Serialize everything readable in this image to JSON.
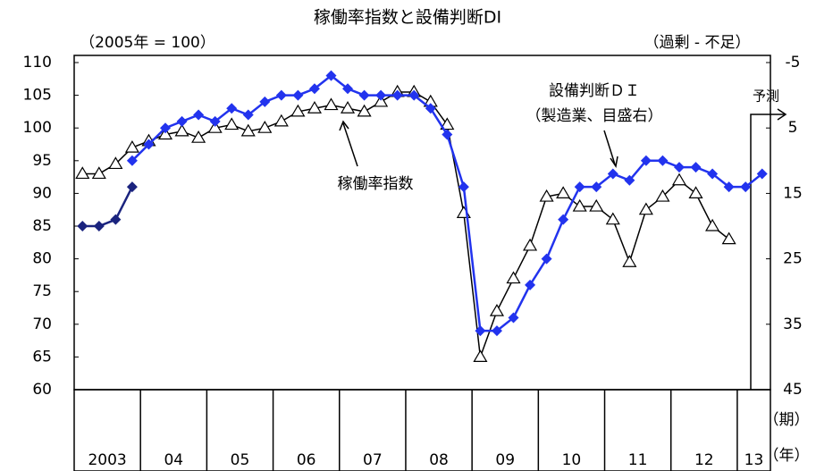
{
  "chart_data": {
    "type": "line",
    "title": "稼働率指数と設備判断DI",
    "y_label": "（2005年 = 100）",
    "y2_label": "（過剰 - 不足）",
    "period_label": "（期）",
    "year_label": "（年）",
    "annotations": [
      "稼働率指数",
      "設備判断ＤＩ",
      "（製造業、目盛右）",
      "予測"
    ],
    "categories": [
      "2003",
      null,
      null,
      null,
      "04",
      null,
      null,
      null,
      "05",
      null,
      null,
      null,
      "06",
      null,
      null,
      null,
      "07",
      null,
      null,
      null,
      "08",
      null,
      null,
      null,
      "09",
      null,
      null,
      null,
      "10",
      null,
      null,
      null,
      "11",
      null,
      null,
      null,
      "12",
      null,
      null,
      null,
      "13",
      null
    ],
    "ylim": [
      60,
      110
    ],
    "yticks": [
      60,
      65,
      70,
      75,
      80,
      85,
      90,
      95,
      100,
      105,
      110
    ],
    "y2lim": [
      -5,
      45
    ],
    "y2_inverted": true,
    "y2ticks": [
      -5,
      5,
      15,
      25,
      35,
      45
    ],
    "series": [
      {
        "name": "稼働率指数",
        "color": "#000000",
        "marker": "triangle",
        "values": [
          93,
          93,
          94.5,
          97,
          98,
          99,
          99.5,
          98.5,
          100,
          100.5,
          99.5,
          100,
          101,
          102.5,
          103,
          103.5,
          103,
          102.5,
          104,
          105.5,
          105.5,
          104,
          100.5,
          87,
          65,
          72,
          77,
          82,
          89.5,
          90,
          88,
          88,
          86,
          79.5,
          87.5,
          89.5,
          92,
          90,
          85,
          83,
          null,
          null
        ]
      },
      {
        "name": "設備判断DI（旧）",
        "color": "#1a237e",
        "marker": "diamond",
        "axis": "y2",
        "values": [
          20,
          20,
          19,
          14,
          null,
          null,
          null,
          null,
          null,
          null,
          null,
          null,
          null,
          null,
          null,
          null,
          null,
          null,
          null,
          null,
          null,
          null,
          null,
          null,
          null,
          null,
          null,
          null,
          null,
          null,
          null,
          null,
          null,
          null,
          null,
          null,
          null,
          null,
          null,
          null,
          null,
          null
        ]
      },
      {
        "name": "設備判断DI",
        "color": "#2233ee",
        "marker": "diamond",
        "axis": "y2",
        "values": [
          null,
          null,
          null,
          10,
          7.5,
          5,
          4,
          3,
          4,
          2,
          3,
          1,
          0,
          0,
          -1,
          -3,
          -1,
          0,
          0,
          0,
          0,
          2,
          6,
          14,
          36,
          36,
          34,
          29,
          25,
          19,
          14,
          14,
          12,
          13,
          10,
          10,
          11,
          11,
          12,
          14,
          14,
          12
        ]
      }
    ]
  }
}
